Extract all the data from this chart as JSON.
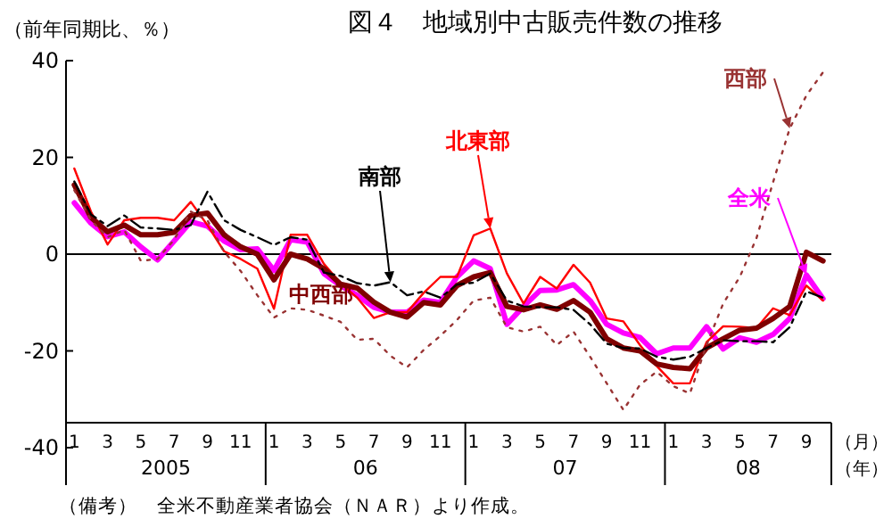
{
  "chart_data": {
    "type": "line",
    "title": "図４　地域別中古販売件数の推移",
    "ylabel": "（前年同期比、％）",
    "xlabel": "（月）（年）",
    "ref_lines": [
      {
        "axis": "y",
        "value": 0,
        "color": "#000000"
      }
    ],
    "categories": [
      "1",
      null,
      "3",
      null,
      "5",
      null,
      "7",
      null,
      "9",
      null,
      "11",
      null,
      "1",
      null,
      "3",
      null,
      "5",
      null,
      "7",
      null,
      "9",
      null,
      "11",
      null,
      "1",
      null,
      "3",
      null,
      "5",
      null,
      "7",
      null,
      "9",
      null,
      "11",
      null,
      "1",
      null,
      "3",
      null,
      "5",
      null,
      "7",
      null,
      "9",
      null
    ],
    "ylim": [
      -40,
      40
    ],
    "yticks": [
      -40,
      -20,
      0,
      20,
      40
    ],
    "grid": false,
    "annotations": [
      "（備考）　全米不動産業者協会（ＮＡＲ）より作成。",
      "2005",
      "06",
      "07",
      "08"
    ],
    "series": [
      {
        "name": "全米",
        "color": "#ff00ff",
        "values": [
          10.6,
          6.4,
          3.6,
          4.6,
          1.5,
          -1.2,
          2.7,
          6.7,
          5.8,
          2.7,
          0.9,
          1.1,
          -3.4,
          3,
          2.5,
          -4,
          -6.5,
          -8.5,
          -11,
          -12,
          -12,
          -9.5,
          -10,
          -4.7,
          -1.4,
          -3,
          -14.5,
          -10.8,
          -7.5,
          -7.4,
          -6.3,
          -9.6,
          -14.5,
          -16.3,
          -17.2,
          -20.6,
          -19.4,
          -19.4,
          -15,
          -19.6,
          -17.3,
          -18.2,
          -16.6,
          -13.3,
          -4.3,
          -9.2
        ]
      },
      {
        "name": "北東部",
        "color": "#ff0000",
        "values": [
          17.7,
          8.8,
          2,
          7,
          7.5,
          7.5,
          7,
          10.8,
          6,
          0.6,
          -1,
          -3,
          -11.3,
          4,
          4,
          -2,
          -6,
          -9,
          -13.2,
          -12,
          -12,
          -8,
          -4.7,
          -4.7,
          3.9,
          5.3,
          -4,
          -10.2,
          -4.7,
          -7.1,
          -2.2,
          -5.9,
          -13.3,
          -13.9,
          -18.8,
          -23.1,
          -26.7,
          -26.7,
          -18.2,
          -14.9,
          -15,
          -15.3,
          -11.2,
          -12.6,
          -6.5,
          -9.6
        ]
      },
      {
        "name": "中西部",
        "color": "#800000",
        "values": [
          14.3,
          7.6,
          4.6,
          6,
          4,
          4,
          4.5,
          8,
          8.5,
          4,
          1.5,
          0,
          -5.3,
          0,
          -1,
          -3,
          -6.2,
          -7,
          -9.9,
          -12,
          -13,
          -10,
          -10.5,
          -6.5,
          -4.7,
          -3.8,
          -10.8,
          -11.5,
          -10.5,
          -11.4,
          -9.6,
          -12,
          -17.5,
          -19.4,
          -20,
          -22.7,
          -23.4,
          -23.7,
          -19.4,
          -17.5,
          -15.7,
          -15.3,
          -13.3,
          -10.8,
          0.4,
          -1.4
        ]
      },
      {
        "name": "南部",
        "color": "#000000",
        "line_style": "dashed",
        "values": [
          15,
          8.2,
          5.8,
          8,
          5.5,
          5.3,
          5,
          6,
          12.9,
          7,
          5,
          3.5,
          1.9,
          3.5,
          3,
          -3.8,
          -4.5,
          -6,
          -6.5,
          -5.8,
          -8.5,
          -7.7,
          -9,
          -6.3,
          -5.9,
          -4,
          -9.6,
          -10.8,
          -11,
          -11,
          -11.5,
          -14.5,
          -18.5,
          -19.4,
          -19.5,
          -21.2,
          -21.8,
          -21.2,
          -19.4,
          -17.8,
          -18,
          -18,
          -18.2,
          -15.1,
          -7.7,
          -9
        ]
      },
      {
        "name": "西部",
        "color": "#993333",
        "line_style": "dotted",
        "values": [
          13.2,
          7,
          3.5,
          5,
          -1.4,
          -1,
          3,
          8.8,
          7,
          0.5,
          -3.5,
          -8.5,
          -13.1,
          -11.2,
          -11.5,
          -12.7,
          -14,
          -17.7,
          -17.5,
          -21,
          -23.4,
          -19.8,
          -16.9,
          -13.6,
          -9.6,
          -9,
          -15.1,
          -16,
          -15,
          -18.8,
          -16,
          -21.2,
          -26.7,
          -32.2,
          -27,
          -24.3,
          -27.3,
          -28.8,
          -18.8,
          -10.2,
          -4.7,
          3.3,
          14.9,
          26,
          32.8,
          37.6
        ]
      }
    ]
  }
}
